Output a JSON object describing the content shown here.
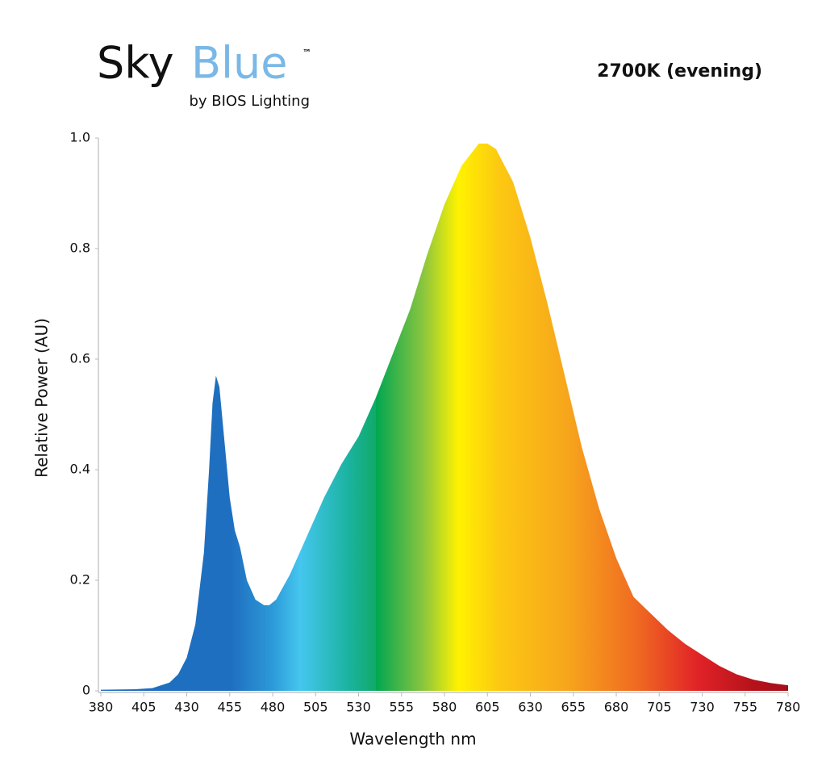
{
  "logo": {
    "sky": "Sky",
    "blue": "Blue",
    "tm": "™",
    "tagline": "by BIOS Lighting"
  },
  "chart_data": {
    "type": "area",
    "title": "2700K (evening)",
    "xlabel": "Wavelength nm",
    "ylabel": "Relative Power (AU)",
    "x": [
      380,
      400,
      410,
      420,
      425,
      430,
      435,
      440,
      443,
      445,
      447,
      449,
      452,
      455,
      458,
      461,
      465,
      470,
      475,
      478,
      482,
      490,
      500,
      510,
      520,
      530,
      540,
      550,
      560,
      570,
      580,
      590,
      600,
      605,
      610,
      620,
      630,
      640,
      650,
      660,
      670,
      680,
      690,
      700,
      710,
      720,
      730,
      740,
      750,
      760,
      770,
      780
    ],
    "values": [
      0.002,
      0.003,
      0.005,
      0.015,
      0.03,
      0.06,
      0.12,
      0.25,
      0.4,
      0.52,
      0.57,
      0.55,
      0.45,
      0.35,
      0.29,
      0.26,
      0.2,
      0.165,
      0.155,
      0.155,
      0.165,
      0.21,
      0.28,
      0.35,
      0.41,
      0.46,
      0.53,
      0.61,
      0.69,
      0.79,
      0.88,
      0.95,
      0.99,
      0.99,
      0.98,
      0.92,
      0.82,
      0.7,
      0.57,
      0.44,
      0.33,
      0.24,
      0.17,
      0.14,
      0.11,
      0.085,
      0.065,
      0.045,
      0.03,
      0.02,
      0.014,
      0.01
    ],
    "xlim": [
      380,
      780
    ],
    "ylim": [
      0,
      1
    ],
    "xticks": [
      380,
      405,
      430,
      455,
      480,
      505,
      530,
      555,
      580,
      605,
      630,
      655,
      680,
      705,
      730,
      755,
      780
    ],
    "yticks": [
      0,
      0.2,
      0.4,
      0.6,
      0.8,
      {
        "value": 1,
        "label": "1.0"
      }
    ],
    "fill": "spectrum",
    "grid": false
  }
}
